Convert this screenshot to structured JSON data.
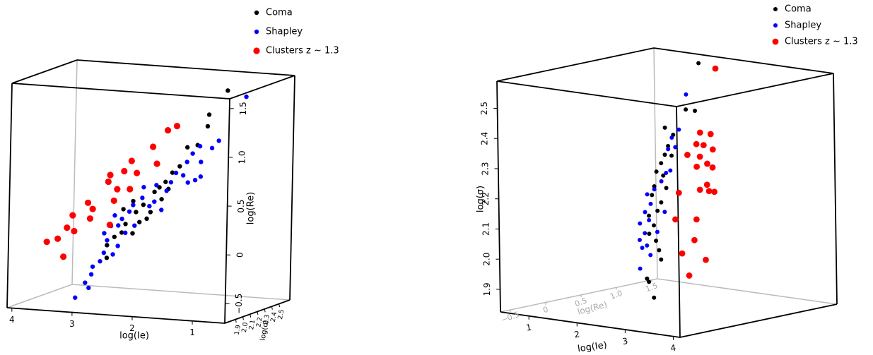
{
  "chart_data": [
    {
      "type": "scatter3d",
      "xlabel": "log(Ie)",
      "ylabel": "log(Re)",
      "zlabel": "log(σ)",
      "legend": "upper right",
      "xlim": [
        4.08,
        0.46
      ],
      "ylim": [
        -0.7,
        1.6
      ],
      "zlim": [
        1.75,
        2.65
      ],
      "xticks": [
        4,
        3,
        2,
        1
      ],
      "yticks": [
        {
          "value": -0.5,
          "label": "−0.5"
        },
        0,
        0.5,
        {
          "value": 1,
          "label": "1.0"
        },
        1.5
      ],
      "zticks": [
        1.9,
        {
          "value": 2,
          "label": "2.0"
        },
        2.1,
        2.2,
        2.3,
        2.4,
        2.5
      ],
      "series": [
        {
          "name": "Coma",
          "color": "#000000",
          "x": [
            1.03,
            1.33,
            1.35,
            1.68,
            1.51,
            1.92,
            2.03,
            2.13,
            2.21,
            2.09,
            2.39,
            2.51,
            2.56,
            2.33,
            2.68,
            2.74,
            2.56,
            2.86,
            2.98,
            2.98,
            2.72,
            1.8,
            1.98,
            2.27,
            2.45
          ],
          "y": [
            1.54,
            1.28,
            1.16,
            0.93,
            0.96,
            0.66,
            0.56,
            0.5,
            0.45,
            0.38,
            0.31,
            0.23,
            0.34,
            0.17,
            0.1,
            0.01,
            0.01,
            -0.04,
            -0.13,
            -0.26,
            0.25,
            0.73,
            0.49,
            0.24,
            0.13
          ],
          "z": [
            2.2,
            2.2,
            2.2,
            2.2,
            2.2,
            2.2,
            2.2,
            2.2,
            2.2,
            2.2,
            2.2,
            2.2,
            2.2,
            2.2,
            2.2,
            2.2,
            2.2,
            2.2,
            2.2,
            2.2,
            2.2,
            2.2,
            2.2,
            2.2,
            2.2
          ]
        },
        {
          "name": "Shapley",
          "color": "#0000ff",
          "x": [
            0.72,
            1.47,
            1.59,
            1.45,
            1.54,
            1.74,
            1.66,
            1.86,
            1.94,
            2.18,
            2.21,
            2.29,
            2.41,
            2.62,
            2.74,
            2.8,
            2.68,
            2.86,
            2.92,
            3.03,
            2.98,
            3.03,
            3.09,
            3.21,
            3.23,
            3.33,
            3.27,
            3.49,
            1.27,
            1.16,
            1.68,
            2.01,
            2.53,
            2.39,
            2.56,
            2.09,
            2.8,
            2.88,
            1.45
          ],
          "y": [
            1.49,
            0.95,
            0.87,
            0.79,
            0.6,
            0.64,
            0.57,
            0.66,
            0.56,
            0.52,
            0.35,
            0.3,
            0.38,
            0.23,
            0.15,
            0.08,
            0.01,
            0.18,
            0.07,
            -0.01,
            -0.08,
            -0.21,
            -0.3,
            -0.36,
            -0.44,
            -0.53,
            -0.58,
            -0.69,
            0.94,
            1.02,
            0.78,
            0.47,
            0.09,
            0.49,
            0.3,
            0.27,
            -0.13,
            -0.22,
            0.64
          ],
          "z": [
            2.2,
            2.2,
            2.2,
            2.2,
            2.2,
            2.2,
            2.2,
            2.2,
            2.2,
            2.2,
            2.2,
            2.2,
            2.2,
            2.2,
            2.2,
            2.2,
            2.2,
            2.2,
            2.2,
            2.2,
            2.2,
            2.2,
            2.2,
            2.2,
            2.2,
            2.2,
            2.2,
            2.2,
            2.2,
            2.2,
            2.2,
            2.2,
            2.2,
            2.2,
            2.2,
            2.2,
            2.2,
            2.2,
            2.2
          ]
        },
        {
          "name": "Clusters z ∼ 1.3",
          "color": "#ff0000",
          "x": [
            1.86,
            2.01,
            2.25,
            2.6,
            2.72,
            2.95,
            2.51,
            2.18,
            2.83,
            2.62,
            2.98,
            2.88,
            3.31,
            3.23,
            3.27,
            2.94,
            3.56,
            3.65,
            3.53,
            3.8,
            3.98,
            3.7
          ],
          "y": [
            1.14,
            1.09,
            0.91,
            0.75,
            0.64,
            0.59,
            0.63,
            0.74,
            0.45,
            0.46,
            0.52,
            0.33,
            0.29,
            0.23,
            0.13,
            0.08,
            0.15,
            0.02,
            -0.01,
            -0.1,
            -0.14,
            -0.28
          ],
          "z": [
            2.2,
            2.2,
            2.2,
            2.2,
            2.2,
            2.2,
            2.2,
            2.2,
            2.2,
            2.2,
            2.2,
            2.2,
            2.2,
            2.2,
            2.2,
            2.2,
            2.2,
            2.2,
            2.2,
            2.2,
            2.2,
            2.2
          ]
        }
      ]
    },
    {
      "type": "scatter3d",
      "xlabel": "log(Ie)",
      "ylabel": "log(σ)",
      "zlabel": "log(Re)",
      "legend": "upper right",
      "xlim": [
        0.41,
        4.14
      ],
      "ylim": [
        1.825,
        2.59
      ],
      "zlim": [
        -0.64,
        1.58
      ],
      "xticks": [
        1,
        2,
        3,
        4
      ],
      "yticks": [
        1.9,
        {
          "value": 2,
          "label": "2.0"
        },
        2.1,
        2.2,
        2.3,
        2.4,
        2.5
      ],
      "zticks": [
        {
          "value": -0.5,
          "label": "−0.5"
        },
        0,
        0.5,
        {
          "value": 1,
          "label": "1.0"
        },
        1.5
      ],
      "series": [
        {
          "name": "Coma",
          "color": "#000000",
          "x": [
            3.46,
            3.18,
            3.37,
            2.74,
            2.91,
            2.8,
            2.73,
            2.87,
            2.65,
            2.55,
            2.69,
            2.5,
            2.75,
            2.45,
            2.64,
            2.56,
            2.38,
            2.48,
            2.38,
            2.52,
            2.58,
            2.62,
            2.32,
            2.36,
            2.46
          ],
          "y": [
            2.68,
            2.52,
            2.52,
            2.45,
            2.43,
            2.39,
            2.36,
            2.36,
            2.33,
            2.3,
            2.29,
            2.25,
            2.25,
            2.22,
            2.2,
            2.17,
            2.15,
            2.12,
            2.09,
            2.07,
            2.04,
            2.01,
            1.94,
            1.93,
            1.88
          ],
          "z": [
            0.14,
            0.14,
            0.14,
            0.14,
            0.14,
            0.14,
            0.14,
            0.14,
            0.14,
            0.14,
            0.14,
            0.14,
            0.14,
            0.14,
            0.14,
            0.14,
            0.14,
            0.14,
            0.14,
            0.14,
            0.14,
            0.14,
            0.14,
            0.14,
            0.14
          ]
        },
        {
          "name": "Shapley",
          "color": "#0000ff",
          "x": [
            3.19,
            3.03,
            2.88,
            2.95,
            2.8,
            2.84,
            2.65,
            2.5,
            2.35,
            2.42,
            2.3,
            2.38,
            2.19,
            2.29,
            2.18,
            2.33,
            2.4,
            2.23,
            2.55,
            2.71,
            2.18,
            2.75
          ],
          "y": [
            2.57,
            2.45,
            2.42,
            2.39,
            2.38,
            2.31,
            2.27,
            2.24,
            2.22,
            2.19,
            2.16,
            2.135,
            2.12,
            2.09,
            2.065,
            2.05,
            2.02,
            2.04,
            2.1,
            2.17,
            1.97,
            2.3
          ],
          "z": [
            0.14,
            0.14,
            0.14,
            0.14,
            0.14,
            0.14,
            0.14,
            0.14,
            0.14,
            0.14,
            0.14,
            0.14,
            0.14,
            0.14,
            0.14,
            0.14,
            0.14,
            0.14,
            0.14,
            0.14,
            0.14,
            0.14
          ]
        },
        {
          "name": "Clusters z ∼ 1.3",
          "color": "#ff0000",
          "x": [
            3.81,
            3.47,
            3.69,
            3.39,
            3.54,
            3.73,
            3.2,
            3.46,
            3.61,
            3.39,
            3.72,
            3.01,
            3.6,
            3.45,
            3.64,
            3.75,
            2.93,
            3.37,
            3.32,
            3.06,
            3.55,
            3.2
          ],
          "y": [
            2.67,
            2.45,
            2.45,
            2.41,
            2.41,
            2.4,
            2.37,
            2.37,
            2.35,
            2.335,
            2.34,
            2.24,
            2.28,
            2.26,
            2.26,
            2.26,
            2.15,
            2.16,
            2.09,
            2.04,
            2.03,
            1.97
          ],
          "z": [
            0.14,
            0.14,
            0.14,
            0.14,
            0.14,
            0.14,
            0.14,
            0.14,
            0.14,
            0.14,
            0.14,
            0.14,
            0.14,
            0.14,
            0.14,
            0.14,
            0.14,
            0.14,
            0.14,
            0.14,
            0.14,
            0.14
          ]
        }
      ]
    }
  ]
}
